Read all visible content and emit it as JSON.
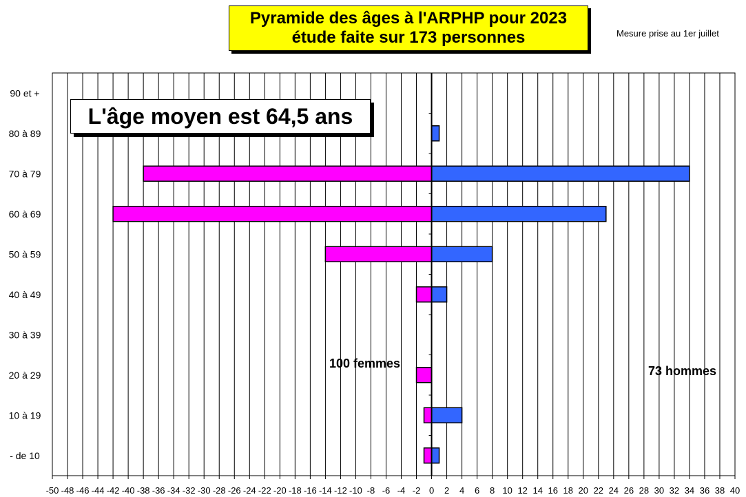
{
  "title": {
    "line1": "Pyramide des âges à l'ARPHP pour 2023",
    "line2": "étude faite sur 173 personnes"
  },
  "note": "Mesure prise au  1er juillet",
  "average_label": "L'âge moyen est 64,5 ans",
  "colors": {
    "women": "#ff00ff",
    "men": "#3366ff",
    "title_bg": "#ffff00"
  },
  "chart_data": {
    "type": "bar",
    "orientation": "horizontal",
    "categories": [
      "90 et +",
      "80 à 89",
      "70 à 79",
      "60 à 69",
      "50 à 59",
      "40 à 49",
      "30 à 39",
      "20 à 29",
      "10 à 19",
      "- de 10"
    ],
    "series": [
      {
        "name": "100 femmes",
        "values": [
          0,
          0,
          -38,
          -42,
          -14,
          -2,
          0,
          -2,
          -1,
          -1
        ]
      },
      {
        "name": "73 hommes",
        "values": [
          0,
          1,
          34,
          23,
          8,
          2,
          0,
          0,
          4,
          1
        ]
      }
    ],
    "xlim": [
      -50,
      40
    ],
    "xticks": [
      -50,
      -48,
      -46,
      -44,
      -42,
      -40,
      -38,
      -36,
      -34,
      -32,
      -30,
      -28,
      -26,
      -24,
      -22,
      -20,
      -18,
      -16,
      -14,
      -12,
      -10,
      -8,
      -6,
      -4,
      -2,
      0,
      2,
      4,
      6,
      8,
      10,
      12,
      14,
      16,
      18,
      20,
      22,
      24,
      26,
      28,
      30,
      32,
      34,
      36,
      38,
      40
    ],
    "grid": true
  }
}
